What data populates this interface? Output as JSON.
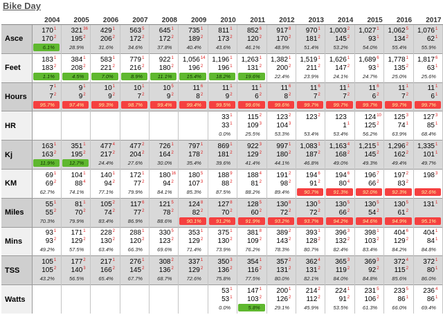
{
  "title": "Bike Day",
  "years": [
    "2004",
    "2005",
    "2006",
    "2007",
    "2008",
    "2009",
    "2010",
    "2011",
    "2012",
    "2013",
    "2014",
    "2015",
    "2016",
    "2017"
  ],
  "rows": [
    {
      "label": "Asce",
      "cells": [
        {
          "a": "170",
          "ar": "1",
          "b": "170",
          "br": "2",
          "p": "6.1%",
          "hl": "green"
        },
        {
          "a": "321",
          "ar": "36",
          "b": "195",
          "br": "2",
          "p": "28.9%"
        },
        {
          "a": "429",
          "ar": "1",
          "b": "206",
          "br": "2",
          "p": "31.6%"
        },
        {
          "a": "563",
          "ar": "5",
          "b": "172",
          "br": "2",
          "p": "34.6%"
        },
        {
          "a": "645",
          "ar": "1",
          "b": "172",
          "br": "2",
          "p": "37.8%"
        },
        {
          "a": "735",
          "ar": "1",
          "b": "189",
          "br": "2",
          "p": "40.4%"
        },
        {
          "a": "811",
          "ar": "1",
          "b": "173",
          "br": "2",
          "p": "43.6%"
        },
        {
          "a": "852",
          "ar": "6",
          "b": "120",
          "br": "2",
          "p": "46.1%"
        },
        {
          "a": "917",
          "ar": "8",
          "b": "170",
          "br": "2",
          "p": "48.9%"
        },
        {
          "a": "970",
          "ar": "1",
          "b": "181",
          "br": "2",
          "p": "51.4%"
        },
        {
          "a": "1,003",
          "ar": "2",
          "b": "145",
          "br": "2",
          "p": "53.2%"
        },
        {
          "a": "1,027",
          "ar": "1",
          "b": "93",
          "br": "1",
          "p": "54.0%"
        },
        {
          "a": "1,062",
          "ar": "5",
          "b": "134",
          "br": "2",
          "p": "55.4%"
        },
        {
          "a": "1,076",
          "ar": "1",
          "b": "62",
          "br": "1",
          "p": "55.9%"
        }
      ]
    },
    {
      "label": "Feet",
      "cells": [
        {
          "a": "183",
          "ar": "1",
          "b": "183",
          "br": "2",
          "p": "1.1%",
          "hl": "green"
        },
        {
          "a": "384",
          "ar": "1",
          "b": "208",
          "br": "2",
          "p": "4.5%",
          "hl": "green"
        },
        {
          "a": "583",
          "ar": "1",
          "b": "221",
          "br": "2",
          "p": "7.0%",
          "hl": "green"
        },
        {
          "a": "779",
          "ar": "1",
          "b": "216",
          "br": "2",
          "p": "8.9%",
          "hl": "green"
        },
        {
          "a": "922",
          "ar": "1",
          "b": "180",
          "br": "2",
          "p": "11.1%",
          "hl": "green"
        },
        {
          "a": "1,056",
          "ar": "14",
          "b": "196",
          "br": "2",
          "p": "15.4%",
          "hl": "green"
        },
        {
          "a": "1,196",
          "ar": "1",
          "b": "196",
          "br": "1",
          "p": "18.2%",
          "hl": "green"
        },
        {
          "a": "1,263",
          "ar": "1",
          "b": "131",
          "br": "2",
          "p": "19.6%",
          "hl": "green"
        },
        {
          "a": "1,382",
          "ar": "1",
          "b": "200",
          "br": "2",
          "p": "22.4%"
        },
        {
          "a": "1,519",
          "ar": "1",
          "b": "211",
          "br": "2",
          "p": "23.9%"
        },
        {
          "a": "1,626",
          "ar": "1",
          "b": "147",
          "br": "2",
          "p": "24.1%"
        },
        {
          "a": "1,689",
          "ar": "6",
          "b": "93",
          "br": "1",
          "p": "24.7%"
        },
        {
          "a": "1,778",
          "ar": "1",
          "b": "135",
          "br": "2",
          "p": "25.0%"
        },
        {
          "a": "1,817",
          "ar": "6",
          "b": "63",
          "br": "1",
          "p": "25.6%"
        }
      ]
    },
    {
      "label": "Hours",
      "cells": [
        {
          "a": "7",
          "ar": "1",
          "b": "7",
          "br": "2",
          "p": "95.7%",
          "hl": "red"
        },
        {
          "a": "9",
          "ar": "1",
          "b": "9",
          "br": "2",
          "p": "97.4%",
          "hl": "red"
        },
        {
          "a": "10",
          "ar": "1",
          "b": "9",
          "br": "2",
          "p": "99.3%",
          "hl": "red"
        },
        {
          "a": "10",
          "ar": "1",
          "b": "7",
          "br": "2",
          "p": "98.7%",
          "hl": "red"
        },
        {
          "a": "10",
          "ar": "5",
          "b": "9",
          "br": "2",
          "p": "99.4%",
          "hl": "red"
        },
        {
          "a": "11",
          "ar": "6",
          "b": "8",
          "br": "2",
          "p": "99.4%",
          "hl": "red"
        },
        {
          "a": "11",
          "ar": "1",
          "b": "9",
          "br": "2",
          "p": "99.5%",
          "hl": "red"
        },
        {
          "a": "11",
          "ar": "1",
          "b": "6",
          "br": "2",
          "p": "99.6%",
          "hl": "red"
        },
        {
          "a": "11",
          "ar": "6",
          "b": "8",
          "br": "2",
          "p": "99.6%",
          "hl": "red"
        },
        {
          "a": "11",
          "ar": "6",
          "b": "7",
          "br": "2",
          "p": "99.7%",
          "hl": "red"
        },
        {
          "a": "11",
          "ar": "1",
          "b": "7",
          "br": "2",
          "p": "99.7%",
          "hl": "red"
        },
        {
          "a": "11",
          "ar": "6",
          "b": "6",
          "br": "2",
          "p": "99.7%",
          "hl": "red"
        },
        {
          "a": "11",
          "ar": "1",
          "b": "7",
          "br": "2",
          "p": "99.7%",
          "hl": "red"
        },
        {
          "a": "11",
          "ar": "1",
          "b": "6",
          "br": "1",
          "p": "99.7%",
          "hl": "red"
        }
      ]
    },
    {
      "label": "HR",
      "cells": [
        {},
        {},
        {},
        {},
        {},
        {},
        {
          "a": "33",
          "ar": "1",
          "b": "33",
          "br": "1",
          "p": "0.0%"
        },
        {
          "a": "115",
          "ar": "2",
          "b": "109",
          "br": "3",
          "p": "25.5%"
        },
        {
          "a": "123",
          "ar": "2",
          "b": "104",
          "br": "3",
          "p": "53.3%"
        },
        {
          "a": "123",
          "ar": "2",
          "b": "",
          "br": "",
          "p": "53.4%"
        },
        {
          "a": "123",
          "ar": "",
          "b": "1",
          "br": "1",
          "p": "53.4%"
        },
        {
          "a": "124",
          "ar": "10",
          "b": "125",
          "br": "2",
          "p": "56.2%"
        },
        {
          "a": "125",
          "ar": "3",
          "b": "74",
          "br": "1",
          "p": "63.9%"
        },
        {
          "a": "127",
          "ar": "3",
          "b": "85",
          "br": "1",
          "p": "68.4%"
        }
      ]
    },
    {
      "label": "Kj",
      "cells": [
        {
          "a": "163",
          "ar": "1",
          "b": "163",
          "br": "2",
          "p": "11.9%",
          "hl": "green"
        },
        {
          "a": "351",
          "ar": "1",
          "b": "195",
          "br": "2",
          "p": "12.7%",
          "hl": "green"
        },
        {
          "a": "477",
          "ar": "4",
          "b": "217",
          "br": "2",
          "p": "24.4%"
        },
        {
          "a": "477",
          "ar": "2",
          "b": "204",
          "br": "2",
          "p": "27.6%"
        },
        {
          "a": "726",
          "ar": "1",
          "b": "164",
          "br": "2",
          "p": "30.0%"
        },
        {
          "a": "797",
          "ar": "1",
          "b": "178",
          "br": "2",
          "p": "35.4%"
        },
        {
          "a": "869",
          "ar": "1",
          "b": "181",
          "br": "2",
          "p": "39.6%"
        },
        {
          "a": "922",
          "ar": "3",
          "b": "129",
          "br": "2",
          "p": "41.4%"
        },
        {
          "a": "997",
          "ar": "1",
          "b": "180",
          "br": "2",
          "p": "44.1%"
        },
        {
          "a": "1,083",
          "ar": "1",
          "b": "187",
          "br": "2",
          "p": "46.8%"
        },
        {
          "a": "1,163",
          "ar": "4",
          "b": "168",
          "br": "2",
          "p": "49.0%"
        },
        {
          "a": "1,215",
          "ar": "1",
          "b": "145",
          "br": "2",
          "p": "49.3%"
        },
        {
          "a": "1,296",
          "ar": "2",
          "b": "162",
          "br": "2",
          "p": "49.4%"
        },
        {
          "a": "1,335",
          "ar": "1",
          "b": "101",
          "br": "1",
          "p": "49.7%"
        }
      ]
    },
    {
      "label": "KM",
      "cells": [
        {
          "a": "69",
          "ar": "1",
          "b": "69",
          "br": "2",
          "p": "62.7%"
        },
        {
          "a": "104",
          "ar": "1",
          "b": "88",
          "br": "4",
          "p": "74.1%"
        },
        {
          "a": "140",
          "ar": "1",
          "b": "94",
          "br": "2",
          "p": "77.1%"
        },
        {
          "a": "172",
          "ar": "1",
          "b": "77",
          "br": "2",
          "p": "79.9%"
        },
        {
          "a": "180",
          "ar": "16",
          "b": "94",
          "br": "2",
          "p": "84.1%"
        },
        {
          "a": "180",
          "ar": "5",
          "b": "107",
          "br": "3",
          "p": "85.3%"
        },
        {
          "a": "188",
          "ar": "9",
          "b": "88",
          "br": "2",
          "p": "87.5%"
        },
        {
          "a": "188",
          "ar": "4",
          "b": "81",
          "br": "2",
          "p": "88.2%"
        },
        {
          "a": "191",
          "ar": "2",
          "b": "98",
          "br": "2",
          "p": "89.4%"
        },
        {
          "a": "194",
          "ar": "6",
          "b": "91",
          "br": "2",
          "p": "90.7%",
          "hl": "red"
        },
        {
          "a": "194",
          "ar": "6",
          "b": "80",
          "br": "4",
          "p": "91.3%",
          "hl": "red"
        },
        {
          "a": "196",
          "ar": "7",
          "b": "66",
          "br": "2",
          "p": "92.0%",
          "hl": "red"
        },
        {
          "a": "197",
          "ar": "2",
          "b": "83",
          "br": "2",
          "p": "92.3%",
          "hl": "red"
        },
        {
          "a": "198",
          "ar": "3",
          "b": "",
          "br": "",
          "p": "92.6%",
          "hl": "red"
        }
      ]
    },
    {
      "label": "Miles",
      "cells": [
        {
          "a": "55",
          "ar": "1",
          "b": "55",
          "br": "2",
          "p": "70.3%"
        },
        {
          "a": "81",
          "ar": "1",
          "b": "70",
          "br": "2",
          "p": "79.9%"
        },
        {
          "a": "105",
          "ar": "2",
          "b": "74",
          "br": "2",
          "p": "83.4%"
        },
        {
          "a": "117",
          "ar": "6",
          "b": "77",
          "br": "2",
          "p": "86.9%"
        },
        {
          "a": "121",
          "ar": "5",
          "b": "78",
          "br": "2",
          "p": "88.6%"
        },
        {
          "a": "124",
          "ar": "8",
          "b": "82",
          "br": "2",
          "p": "90.1%",
          "hl": "red"
        },
        {
          "a": "127",
          "ar": "8",
          "b": "70",
          "br": "2",
          "p": "91.2%",
          "hl": "red"
        },
        {
          "a": "128",
          "ar": "5",
          "b": "60",
          "br": "2",
          "p": "91.9%",
          "hl": "red"
        },
        {
          "a": "130",
          "ar": "8",
          "b": "72",
          "br": "2",
          "p": "93.2%",
          "hl": "red"
        },
        {
          "a": "130",
          "ar": "5",
          "b": "72",
          "br": "2",
          "p": "93.7%",
          "hl": "red"
        },
        {
          "a": "130",
          "ar": "5",
          "b": "66",
          "br": "2",
          "p": "94.2%",
          "hl": "red"
        },
        {
          "a": "130",
          "ar": "5",
          "b": "54",
          "br": "2",
          "p": "94.6%",
          "hl": "red"
        },
        {
          "a": "130",
          "ar": "5",
          "b": "61",
          "br": "2",
          "p": "94.9%",
          "hl": "red"
        },
        {
          "a": "131",
          "ar": "1",
          "b": "",
          "br": "",
          "p": "95.1%",
          "hl": "red"
        }
      ]
    },
    {
      "label": "Mins",
      "cells": [
        {
          "a": "93",
          "ar": "1",
          "b": "93",
          "br": "2",
          "p": "49.2%"
        },
        {
          "a": "171",
          "ar": "1",
          "b": "129",
          "br": "2",
          "p": "57.5%"
        },
        {
          "a": "228",
          "ar": "2",
          "b": "130",
          "br": "2",
          "p": "63.4%"
        },
        {
          "a": "288",
          "ar": "1",
          "b": "120",
          "br": "2",
          "p": "66.3%"
        },
        {
          "a": "330",
          "ar": "5",
          "b": "123",
          "br": "2",
          "p": "69.6%"
        },
        {
          "a": "353",
          "ar": "1",
          "b": "129",
          "br": "2",
          "p": "71.4%"
        },
        {
          "a": "375",
          "ar": "1",
          "b": "130",
          "br": "2",
          "p": "73.9%"
        },
        {
          "a": "381",
          "ar": "8",
          "b": "109",
          "br": "2",
          "p": "76.2%"
        },
        {
          "a": "389",
          "ar": "2",
          "b": "143",
          "br": "2",
          "p": "78.3%"
        },
        {
          "a": "393",
          "ar": "1",
          "b": "128",
          "br": "2",
          "p": "80.7%"
        },
        {
          "a": "396",
          "ar": "3",
          "b": "132",
          "br": "2",
          "p": "82.4%"
        },
        {
          "a": "398",
          "ar": "1",
          "b": "103",
          "br": "2",
          "p": "83.4%"
        },
        {
          "a": "404",
          "ar": "6",
          "b": "129",
          "br": "2",
          "p": "84.2%"
        },
        {
          "a": "404",
          "ar": "1",
          "b": "84",
          "br": "1",
          "p": "84.8%"
        }
      ]
    },
    {
      "label": "TSS",
      "cells": [
        {
          "a": "105",
          "ar": "1",
          "b": "105",
          "br": "2",
          "p": "43.2%"
        },
        {
          "a": "177",
          "ar": "2",
          "b": "140",
          "br": "3",
          "p": "56.5%"
        },
        {
          "a": "217",
          "ar": "1",
          "b": "166",
          "br": "2",
          "p": "65.4%"
        },
        {
          "a": "276",
          "ar": "1",
          "b": "145",
          "br": "2",
          "p": "67.7%"
        },
        {
          "a": "308",
          "ar": "2",
          "b": "136",
          "br": "2",
          "p": "68.7%"
        },
        {
          "a": "337",
          "ar": "1",
          "b": "129",
          "br": "2",
          "p": "72.6%"
        },
        {
          "a": "350",
          "ar": "3",
          "b": "136",
          "br": "2",
          "p": "75.8%"
        },
        {
          "a": "354",
          "ar": "1",
          "b": "116",
          "br": "2",
          "p": "77.5%"
        },
        {
          "a": "357",
          "ar": "2",
          "b": "131",
          "br": "2",
          "p": "80.0%"
        },
        {
          "a": "362",
          "ar": "4",
          "b": "131",
          "br": "2",
          "p": "82.1%"
        },
        {
          "a": "365",
          "ar": "3",
          "b": "119",
          "br": "2",
          "p": "84.0%"
        },
        {
          "a": "369",
          "ar": "3",
          "b": "92",
          "br": "2",
          "p": "84.8%"
        },
        {
          "a": "372",
          "ar": "4",
          "b": "115",
          "br": "2",
          "p": "85.6%"
        },
        {
          "a": "372",
          "ar": "1",
          "b": "80",
          "br": "1",
          "p": "86.0%"
        }
      ]
    },
    {
      "label": "Watts",
      "cells": [
        {},
        {},
        {},
        {},
        {},
        {},
        {
          "a": "53",
          "ar": "1",
          "b": "53",
          "br": "1",
          "p": "0.0%"
        },
        {
          "a": "147",
          "ar": "1",
          "b": "103",
          "br": "2",
          "p": "5.8%",
          "hl": "green"
        },
        {
          "a": "200",
          "ar": "1",
          "b": "126",
          "br": "2",
          "p": "29.1%"
        },
        {
          "a": "214",
          "ar": "2",
          "b": "112",
          "br": "2",
          "p": "45.9%"
        },
        {
          "a": "224",
          "ar": "1",
          "b": "91",
          "br": "2",
          "p": "53.5%"
        },
        {
          "a": "231",
          "ar": "5",
          "b": "106",
          "br": "2",
          "p": "61.3%"
        },
        {
          "a": "233",
          "ar": "5",
          "b": "86",
          "br": "1",
          "p": "66.0%"
        },
        {
          "a": "236",
          "ar": "4",
          "b": "86",
          "br": "1",
          "p": "69.4%"
        }
      ]
    }
  ]
}
